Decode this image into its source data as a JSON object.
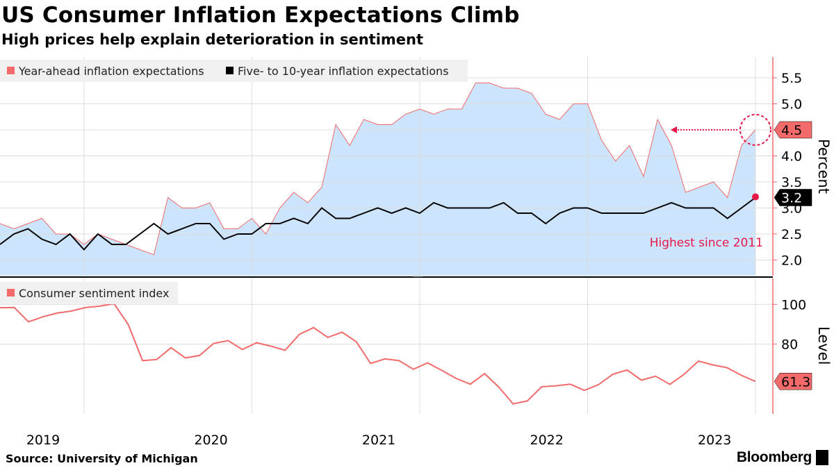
{
  "header": {
    "title": "US Consumer Inflation Expectations Climb",
    "subtitle": "High prices help explain deterioration in sentiment"
  },
  "footer": {
    "source": "Source: University of Michigan",
    "brand": "Bloomberg"
  },
  "colors": {
    "area_fill": "#cce4fc",
    "year_ahead_line": "#f26a6a",
    "five_ten_line": "#000000",
    "sentiment_line": "#f26a6a",
    "highlight": "#e8174a",
    "axis": "#f26a6a",
    "legend_bg": "#f0f0f0"
  },
  "chart_data": [
    {
      "type": "area",
      "ylabel": "Percent",
      "ylim": [
        1.7,
        5.9
      ],
      "yticks": [
        "2.0",
        "2.5",
        "3.0",
        "3.5",
        "4.0",
        "4.5",
        "5.0",
        "5.5"
      ],
      "xlabels": [
        "2019",
        "2020",
        "2021",
        "2022",
        "2023"
      ],
      "x_start": "2019-01",
      "x_end": "2023-06",
      "legend_position": "top-left",
      "annotation": "Highest since 2011",
      "series": [
        {
          "name": "Year-ahead inflation expectations",
          "style": "area",
          "values": [
            2.7,
            2.6,
            2.7,
            2.8,
            2.5,
            2.5,
            2.3,
            2.5,
            2.4,
            2.3,
            2.2,
            2.1,
            3.2,
            3.0,
            3.0,
            3.1,
            2.6,
            2.6,
            2.8,
            2.5,
            3.0,
            3.3,
            3.1,
            3.4,
            4.6,
            4.2,
            4.7,
            4.6,
            4.6,
            4.8,
            4.9,
            4.8,
            4.9,
            4.9,
            5.4,
            5.4,
            5.3,
            5.3,
            5.2,
            4.8,
            4.7,
            5.0,
            5.0,
            4.3,
            3.9,
            4.2,
            3.6,
            4.7,
            4.2,
            3.3,
            3.4,
            3.5,
            3.2,
            4.2,
            4.5
          ],
          "last_label": "4.5"
        },
        {
          "name": "Five- to 10-year inflation expectations",
          "style": "line",
          "values": [
            2.3,
            2.5,
            2.6,
            2.4,
            2.3,
            2.5,
            2.2,
            2.5,
            2.3,
            2.3,
            2.5,
            2.7,
            2.5,
            2.6,
            2.7,
            2.7,
            2.4,
            2.5,
            2.5,
            2.7,
            2.7,
            2.8,
            2.7,
            3.0,
            2.8,
            2.8,
            2.9,
            3.0,
            2.9,
            3.0,
            2.9,
            3.1,
            3.0,
            3.0,
            3.0,
            3.0,
            3.1,
            2.9,
            2.9,
            2.7,
            2.9,
            3.0,
            3.0,
            2.9,
            2.9,
            2.9,
            2.9,
            3.0,
            3.1,
            3.0,
            3.0,
            3.0,
            2.8,
            3.0,
            3.2
          ],
          "last_label": "3.2"
        }
      ]
    },
    {
      "type": "line",
      "ylabel": "Level",
      "ylim": [
        45,
        113
      ],
      "yticks": [
        "80",
        "100"
      ],
      "legend_position": "top-left",
      "series": [
        {
          "name": "Consumer sentiment index",
          "values": [
            98.3,
            98.4,
            91.2,
            93.7,
            95.6,
            96.6,
            98.4,
            99.1,
            100.3,
            89.8,
            71.7,
            72.3,
            78.2,
            73.1,
            74.3,
            80.4,
            81.8,
            77.3,
            80.7,
            79.0,
            76.9,
            84.9,
            88.3,
            83.4,
            86.0,
            81.2,
            70.3,
            72.6,
            71.7,
            67.4,
            70.6,
            66.8,
            62.8,
            59.9,
            65.2,
            58.4,
            50.0,
            51.5,
            58.6,
            59.1,
            59.9,
            56.8,
            59.7,
            64.9,
            67.0,
            61.9,
            63.9,
            59.8,
            64.9,
            71.5,
            69.6,
            68.2,
            64.4,
            61.3
          ],
          "last_label": "61.3"
        }
      ]
    }
  ]
}
